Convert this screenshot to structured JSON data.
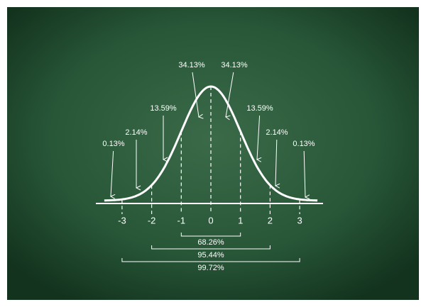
{
  "axis_labels": [
    "-3",
    "-2",
    "-1",
    "0",
    "1",
    "2",
    "3"
  ],
  "area_labels": [
    "0.13%",
    "2.14%",
    "13.59%",
    "34.13%",
    "34.13%",
    "13.59%",
    "2.14%",
    "0.13%"
  ],
  "range_labels": [
    "68.26%",
    "95.44%",
    "99.72%"
  ]
}
